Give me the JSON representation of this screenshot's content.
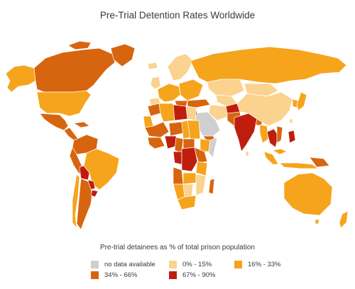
{
  "title": "Pre-Trial Detention Rates Worldwide",
  "legend": {
    "title": "Pre-trial detainees as % of total prison population",
    "items": [
      {
        "label": "no data available",
        "color": "#cfcfcf"
      },
      {
        "label": "0% - 15%",
        "color": "#fbd28e"
      },
      {
        "label": "16% - 33%",
        "color": "#f5a41c"
      },
      {
        "label": "34% - 66%",
        "color": "#d7650f"
      },
      {
        "label": "67% - 90%",
        "color": "#bf1e0f"
      }
    ]
  }
}
